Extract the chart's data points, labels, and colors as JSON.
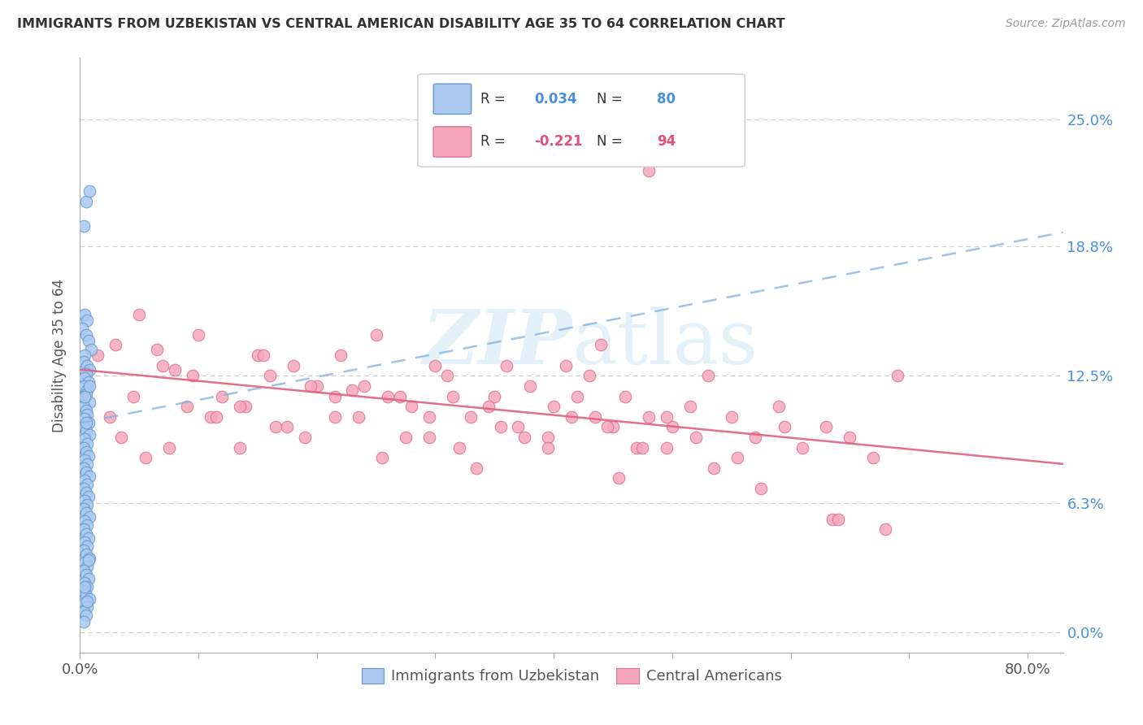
{
  "title": "IMMIGRANTS FROM UZBEKISTAN VS CENTRAL AMERICAN DISABILITY AGE 35 TO 64 CORRELATION CHART",
  "source": "Source: ZipAtlas.com",
  "ylabel": "Disability Age 35 to 64",
  "ytick_labels": [
    "0.0%",
    "6.3%",
    "12.5%",
    "18.8%",
    "25.0%"
  ],
  "ytick_values": [
    0.0,
    6.3,
    12.5,
    18.8,
    25.0
  ],
  "xtick_values": [
    0,
    10,
    20,
    30,
    40,
    50,
    60,
    70,
    80
  ],
  "xlim": [
    0.0,
    83.0
  ],
  "ylim": [
    -1.0,
    28.0
  ],
  "r_uzbekistan": 0.034,
  "n_uzbekistan": 80,
  "r_central": -0.221,
  "n_central": 94,
  "legend_label_uzbekistan": "Immigrants from Uzbekistan",
  "legend_label_central": "Central Americans",
  "color_uzbekistan_fill": "#aac8f0",
  "color_central_fill": "#f5a8bb",
  "color_uzbekistan_edge": "#6699cc",
  "color_central_edge": "#e07090",
  "color_uzbekistan_line": "#8ab4e0",
  "color_central_line": "#e06080",
  "color_text_blue": "#4a90d9",
  "color_text_pink": "#e0507a",
  "color_grid": "#cccccc",
  "watermark_color": "#cce8f4",
  "uz_line_start_x": 0.0,
  "uz_line_start_y": 10.2,
  "uz_line_end_x": 83.0,
  "uz_line_end_y": 19.5,
  "ca_line_start_x": 0.0,
  "ca_line_start_y": 12.8,
  "ca_line_end_x": 83.0,
  "ca_line_end_y": 8.2,
  "uzbekistan_scatter_x": [
    0.5,
    0.8,
    0.3,
    0.4,
    0.6,
    0.2,
    0.5,
    0.7,
    0.9,
    0.4,
    0.3,
    0.6,
    0.8,
    0.5,
    0.4,
    0.7,
    0.3,
    0.6,
    0.5,
    0.4,
    0.8,
    0.3,
    0.5,
    0.6,
    0.4,
    0.7,
    0.3,
    0.5,
    0.8,
    0.4,
    0.6,
    0.3,
    0.5,
    0.7,
    0.4,
    0.6,
    0.3,
    0.5,
    0.8,
    0.4,
    0.6,
    0.3,
    0.5,
    0.7,
    0.4,
    0.6,
    0.3,
    0.5,
    0.8,
    0.4,
    0.6,
    0.3,
    0.5,
    0.7,
    0.4,
    0.6,
    0.3,
    0.5,
    0.8,
    0.4,
    0.6,
    0.3,
    0.5,
    0.7,
    0.4,
    0.6,
    0.3,
    0.5,
    0.8,
    0.4,
    0.6,
    0.3,
    0.5,
    0.7,
    0.4,
    0.6,
    0.3,
    0.5,
    0.8,
    0.4
  ],
  "uzbekistan_scatter_y": [
    21.0,
    21.5,
    19.8,
    15.5,
    15.2,
    14.8,
    14.5,
    14.2,
    13.8,
    13.5,
    13.2,
    13.0,
    12.8,
    12.6,
    12.4,
    12.2,
    12.0,
    11.8,
    11.6,
    11.4,
    11.2,
    11.0,
    10.8,
    10.6,
    10.4,
    10.2,
    10.0,
    9.8,
    9.6,
    9.4,
    9.2,
    9.0,
    8.8,
    8.6,
    8.4,
    8.2,
    8.0,
    7.8,
    7.6,
    7.4,
    7.2,
    7.0,
    6.8,
    6.6,
    6.4,
    6.2,
    6.0,
    5.8,
    5.6,
    5.4,
    5.2,
    5.0,
    4.8,
    4.6,
    4.4,
    4.2,
    4.0,
    3.8,
    3.6,
    3.4,
    3.2,
    3.0,
    2.8,
    2.6,
    2.4,
    2.2,
    2.0,
    1.8,
    1.6,
    1.4,
    1.2,
    1.0,
    0.8,
    3.5,
    2.2,
    1.5,
    0.5,
    10.2,
    12.0,
    11.5
  ],
  "central_scatter_x": [
    1.5,
    3.0,
    5.0,
    7.0,
    8.0,
    10.0,
    12.0,
    14.0,
    15.0,
    16.0,
    18.0,
    20.0,
    22.0,
    23.0,
    25.0,
    26.0,
    28.0,
    30.0,
    31.0,
    33.0,
    35.0,
    36.0,
    38.0,
    40.0,
    41.0,
    43.0,
    45.0,
    46.0,
    48.0,
    50.0,
    2.5,
    4.5,
    6.5,
    9.0,
    11.0,
    13.5,
    16.5,
    19.0,
    21.5,
    24.0,
    27.0,
    29.5,
    32.0,
    34.5,
    37.0,
    39.5,
    42.0,
    44.5,
    47.0,
    49.5,
    52.0,
    53.0,
    55.0,
    57.0,
    59.0,
    61.0,
    63.0,
    65.0,
    67.0,
    69.0,
    3.5,
    7.5,
    11.5,
    15.5,
    19.5,
    23.5,
    27.5,
    31.5,
    35.5,
    39.5,
    43.5,
    47.5,
    51.5,
    55.5,
    59.5,
    63.5,
    5.5,
    9.5,
    13.5,
    17.5,
    21.5,
    25.5,
    29.5,
    33.5,
    37.5,
    41.5,
    45.5,
    49.5,
    53.5,
    57.5,
    64.0,
    68.0,
    44.0,
    48.0
  ],
  "central_scatter_y": [
    13.5,
    14.0,
    15.5,
    13.0,
    12.8,
    14.5,
    11.5,
    11.0,
    13.5,
    12.5,
    13.0,
    12.0,
    13.5,
    11.8,
    14.5,
    11.5,
    11.0,
    13.0,
    12.5,
    10.5,
    11.5,
    13.0,
    12.0,
    11.0,
    13.0,
    12.5,
    10.0,
    11.5,
    10.5,
    10.0,
    10.5,
    11.5,
    13.8,
    11.0,
    10.5,
    11.0,
    10.0,
    9.5,
    10.5,
    12.0,
    11.5,
    10.5,
    9.0,
    11.0,
    10.0,
    9.5,
    11.5,
    10.0,
    9.0,
    10.5,
    9.5,
    12.5,
    10.5,
    9.5,
    11.0,
    9.0,
    10.0,
    9.5,
    8.5,
    12.5,
    9.5,
    9.0,
    10.5,
    13.5,
    12.0,
    10.5,
    9.5,
    11.5,
    10.0,
    9.0,
    10.5,
    9.0,
    11.0,
    8.5,
    10.0,
    5.5,
    8.5,
    12.5,
    9.0,
    10.0,
    11.5,
    8.5,
    9.5,
    8.0,
    9.5,
    10.5,
    7.5,
    9.0,
    8.0,
    7.0,
    5.5,
    5.0,
    14.0,
    22.5
  ]
}
